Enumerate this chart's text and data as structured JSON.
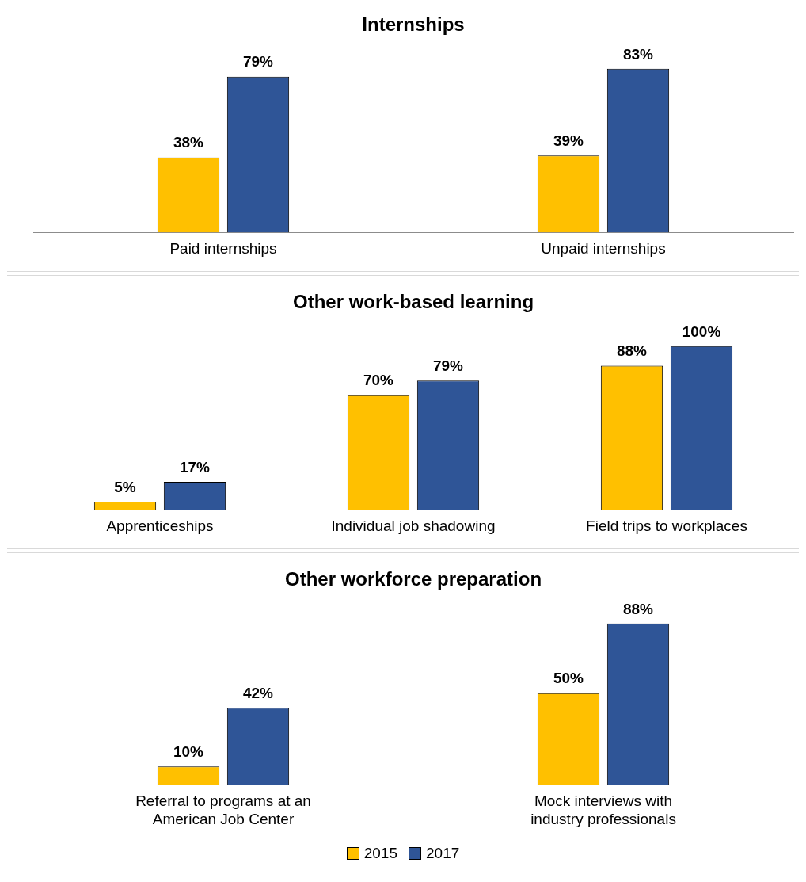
{
  "chart_data": [
    {
      "type": "bar",
      "title": "Internships",
      "categories": [
        "Paid internships",
        "Unpaid internships"
      ],
      "series": [
        {
          "color": "#ffc000",
          "values": [
            38,
            39
          ],
          "value_labels": [
            "38%",
            "39%"
          ]
        },
        {
          "color": "#2f5597",
          "values": [
            79,
            83
          ],
          "value_labels": [
            "79%",
            "83%"
          ]
        }
      ],
      "grid": false,
      "legend": false
    },
    {
      "type": "bar",
      "title": "Other work-based learning",
      "categories": [
        "Apprenticeships",
        "Individual job shadowing",
        "Field trips to workplaces"
      ],
      "series": [
        {
          "color": "#ffc000",
          "values": [
            5,
            70,
            88
          ],
          "value_labels": [
            "5%",
            "70%",
            "88%"
          ]
        },
        {
          "color": "#2f5597",
          "values": [
            17,
            79,
            100
          ],
          "value_labels": [
            "17%",
            "79%",
            "100%"
          ]
        }
      ],
      "grid": false,
      "legend": false
    },
    {
      "type": "bar",
      "title": "Other workforce preparation",
      "categories": [
        "Referral to programs at an American Job Center",
        "Mock interviews with industry professionals"
      ],
      "series": [
        {
          "name": "2015",
          "color": "#ffc000",
          "values": [
            10,
            50
          ],
          "value_labels": [
            "10%",
            "50%"
          ]
        },
        {
          "name": "2017",
          "color": "#2f5597",
          "values": [
            42,
            88
          ],
          "value_labels": [
            "42%",
            "88%"
          ]
        }
      ],
      "grid": false,
      "legend": "bottom"
    }
  ]
}
